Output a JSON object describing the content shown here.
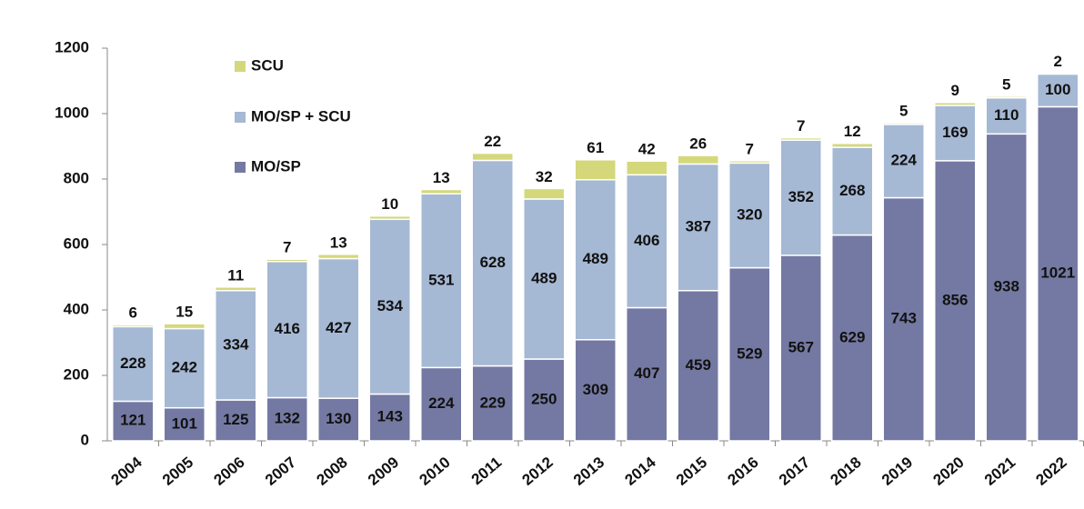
{
  "chart_data": {
    "type": "stacked_bar",
    "categories": [
      "2004",
      "2005",
      "2006",
      "2007",
      "2008",
      "2009",
      "2010",
      "2011",
      "2012",
      "2013",
      "2014",
      "2015",
      "2016",
      "2017",
      "2018",
      "2019",
      "2020",
      "2021",
      "2022"
    ],
    "series": [
      {
        "name": "MO/SP",
        "color": "#7479a3",
        "values": [
          121,
          101,
          125,
          132,
          130,
          143,
          224,
          229,
          250,
          309,
          407,
          459,
          529,
          567,
          629,
          743,
          856,
          938,
          1021
        ]
      },
      {
        "name": "MO/SP + SCU",
        "color": "#a5b8d4",
        "values": [
          228,
          242,
          334,
          416,
          427,
          534,
          531,
          628,
          489,
          489,
          406,
          387,
          320,
          352,
          268,
          224,
          169,
          110,
          100
        ]
      },
      {
        "name": "SCU",
        "color": "#d4d87a",
        "values": [
          6,
          15,
          11,
          7,
          13,
          10,
          13,
          22,
          32,
          61,
          42,
          26,
          7,
          7,
          12,
          5,
          9,
          5,
          2
        ]
      }
    ],
    "ylim": [
      0,
      1200
    ],
    "yticks": [
      0,
      200,
      400,
      600,
      800,
      1000,
      1200
    ],
    "grid": false
  }
}
